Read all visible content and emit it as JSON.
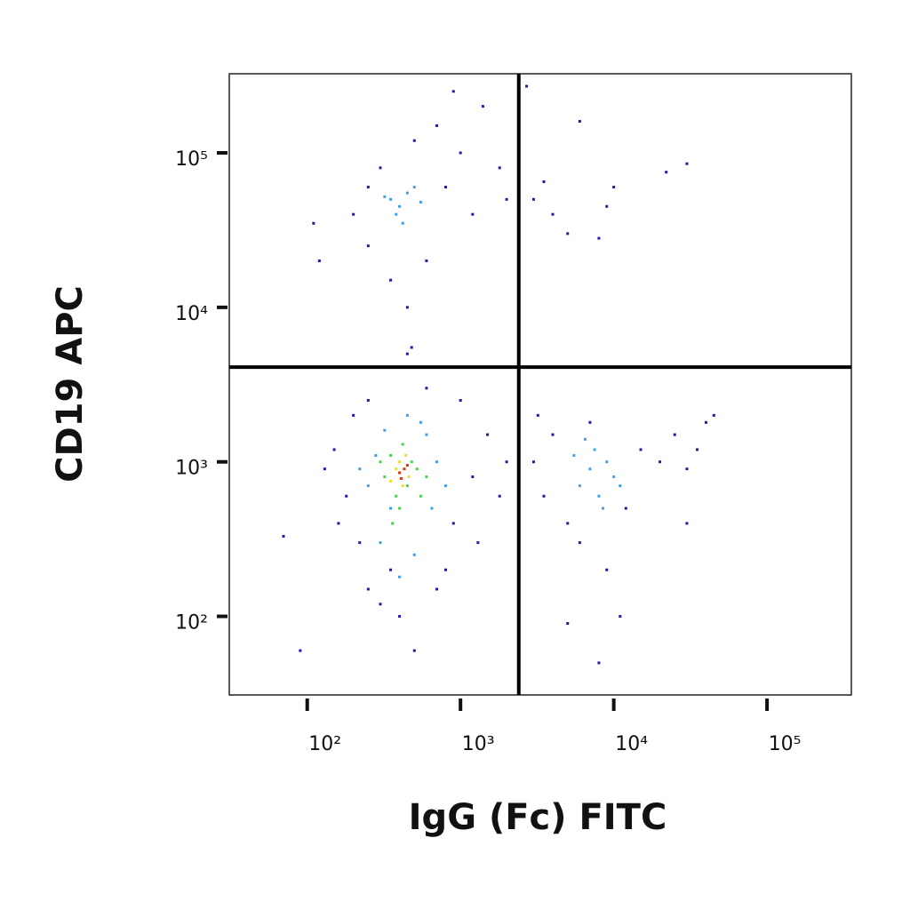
{
  "chart_data": {
    "type": "scatter",
    "x_label": "IgG (Fc) FITC",
    "y_label": "CD19 APC",
    "log_x": true,
    "log_y": true,
    "xlim": [
      31,
      355000
    ],
    "ylim": [
      31,
      325000
    ],
    "xticks": [
      {
        "value": 100,
        "label": "10²"
      },
      {
        "value": 1000,
        "label": "10³"
      },
      {
        "value": 10000,
        "label": "10⁴"
      },
      {
        "value": 100000,
        "label": "10⁵"
      }
    ],
    "yticks": [
      {
        "value": 100,
        "label": "10²"
      },
      {
        "value": 1000,
        "label": "10³"
      },
      {
        "value": 10000,
        "label": "10⁴"
      },
      {
        "value": 100000,
        "label": "10⁵"
      }
    ],
    "gates": {
      "x": 2400,
      "y": 4100,
      "color": "#000000"
    },
    "series": [
      {
        "color": "#1c1ca8",
        "x": [
          150,
          180,
          200,
          220,
          250,
          300,
          700,
          900,
          1200,
          1500,
          1000,
          600,
          250,
          130,
          70,
          90,
          400,
          500,
          1800,
          2000,
          1300,
          800,
          350,
          160,
          450,
          480,
          3000,
          3500,
          4000,
          5000,
          6000,
          7000,
          9000,
          12000,
          15000,
          20000,
          25000,
          30000,
          35000,
          40000,
          30000,
          5000,
          8000,
          11000,
          3200,
          45000,
          200,
          250,
          300,
          350,
          450,
          600,
          800,
          1000,
          1200,
          700,
          900,
          1400,
          1800,
          2000,
          250,
          500,
          120,
          110,
          3000,
          3500,
          4000,
          5000,
          6000,
          8000,
          10000,
          22000,
          30000,
          9000,
          2700
        ],
        "y": [
          1200,
          600,
          2000,
          300,
          150,
          120,
          150,
          400,
          800,
          1500,
          2500,
          3000,
          2500,
          900,
          330,
          60,
          100,
          60,
          600,
          1000,
          300,
          200,
          200,
          400,
          5000,
          5500,
          1000,
          600,
          1500,
          400,
          300,
          1800,
          200,
          500,
          1200,
          1000,
          1500,
          900,
          1200,
          1800,
          400,
          90,
          50,
          100,
          2000,
          2000,
          40000,
          25000,
          80000,
          15000,
          10000,
          20000,
          60000,
          100000,
          40000,
          150000,
          250000,
          200000,
          80000,
          50000,
          60000,
          120000,
          20000,
          35000,
          50000,
          65000,
          40000,
          30000,
          160000,
          28000,
          60000,
          75000,
          85000,
          45000,
          270000
        ]
      },
      {
        "color": "#3fa0e8",
        "x": [
          250,
          280,
          320,
          350,
          300,
          600,
          700,
          650,
          500,
          400,
          220,
          800,
          550,
          450,
          6000,
          7000,
          8000,
          9000,
          10000,
          7500,
          5500,
          11000,
          8500,
          6500,
          350,
          400,
          450,
          380,
          500,
          420,
          550,
          320
        ],
        "y": [
          700,
          1100,
          1600,
          500,
          300,
          1500,
          1000,
          500,
          250,
          180,
          900,
          700,
          1800,
          2000,
          700,
          900,
          600,
          1000,
          800,
          1200,
          1100,
          700,
          500,
          1400,
          50000,
          45000,
          55000,
          40000,
          60000,
          35000,
          48000,
          52000
        ]
      },
      {
        "color": "#4cd050",
        "x": [
          320,
          350,
          380,
          420,
          450,
          480,
          520,
          400,
          360,
          550,
          300,
          600
        ],
        "y": [
          800,
          1100,
          600,
          1300,
          700,
          1000,
          900,
          500,
          400,
          600,
          1000,
          800
        ]
      },
      {
        "color": "#e8e030",
        "x": [
          380,
          420,
          440,
          400,
          460,
          350
        ],
        "y": [
          900,
          700,
          1100,
          1000,
          800,
          750
        ]
      },
      {
        "color": "#e03018",
        "x": [
          400,
          430,
          410,
          450
        ],
        "y": [
          850,
          900,
          780,
          950
        ]
      }
    ]
  }
}
